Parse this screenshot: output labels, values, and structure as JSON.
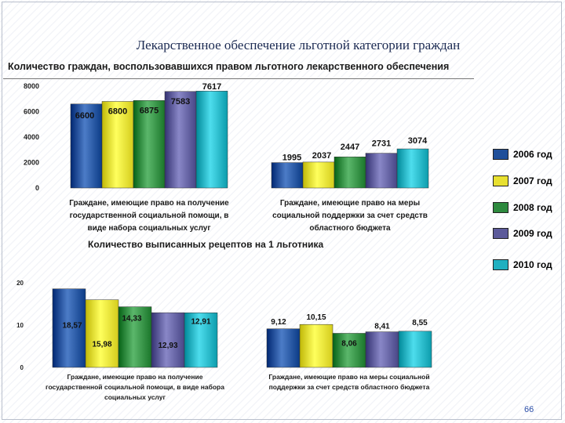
{
  "title": "Лекарственное обеспечение льготной категории граждан",
  "subtitle": "Количество граждан, воспользовавшихся правом льготного лекарственного обеспечения",
  "second_title": "Количество выписанных рецептов на 1 льготника",
  "page_number": "66",
  "legend": [
    {
      "label": "2006 год",
      "color": "#1f4f9a"
    },
    {
      "label": "2007 год",
      "color": "#e8e030"
    },
    {
      "label": "2008 год",
      "color": "#2e8a3e"
    },
    {
      "label": "2009 год",
      "color": "#5c5a9a"
    },
    {
      "label": "2010 год",
      "color": "#20b0c0"
    }
  ],
  "chart_data": [
    {
      "type": "bar",
      "title": "Количество граждан, воспользовавшихся правом льготного лекарственного обеспечения",
      "categories": [
        "Граждане, имеющие право на получение государственной социальной помощи, в виде набора социальных услуг",
        "Граждане, имеющие право на меры социальной поддержки за счет средств областного бюджета"
      ],
      "series": [
        {
          "name": "2006 год",
          "values": [
            6600,
            1995
          ],
          "labels": [
            "6600",
            "1995"
          ]
        },
        {
          "name": "2007 год",
          "values": [
            6800,
            2037
          ],
          "labels": [
            "6800",
            "2037"
          ]
        },
        {
          "name": "2008 год",
          "values": [
            6875,
            2447
          ],
          "labels": [
            "6875",
            "2447"
          ]
        },
        {
          "name": "2009 год",
          "values": [
            7583,
            2731
          ],
          "labels": [
            "7583",
            "2731"
          ]
        },
        {
          "name": "2010 год",
          "values": [
            7617,
            3074
          ],
          "labels": [
            "7617",
            "3074"
          ]
        }
      ],
      "yticks": [
        "0",
        "2000",
        "4000",
        "6000",
        "8000"
      ],
      "ylim": [
        0,
        8000
      ]
    },
    {
      "type": "bar",
      "title": "Количество выписанных рецептов на 1 льготника",
      "categories": [
        "Граждане, имеющие право на получение государственной социальной помощи, в виде набора социальных услуг",
        "Граждане, имеющие право на меры социальной поддержки за счет средств областного бюджета"
      ],
      "series": [
        {
          "name": "2006 год",
          "values": [
            18.57,
            9.12
          ],
          "labels": [
            "18,57",
            "9,12"
          ]
        },
        {
          "name": "2007 год",
          "values": [
            15.98,
            10.15
          ],
          "labels": [
            "15,98",
            "10,15"
          ]
        },
        {
          "name": "2008 год",
          "values": [
            14.33,
            8.06
          ],
          "labels": [
            "14,33",
            "8,06"
          ]
        },
        {
          "name": "2009 год",
          "values": [
            12.93,
            8.41
          ],
          "labels": [
            "12,93",
            "8,41"
          ]
        },
        {
          "name": "2010 год",
          "values": [
            12.91,
            8.55
          ],
          "labels": [
            "12,91",
            "8,55"
          ]
        }
      ],
      "yticks": [
        "0",
        "10",
        "20"
      ],
      "ylim": [
        0,
        20
      ]
    }
  ]
}
